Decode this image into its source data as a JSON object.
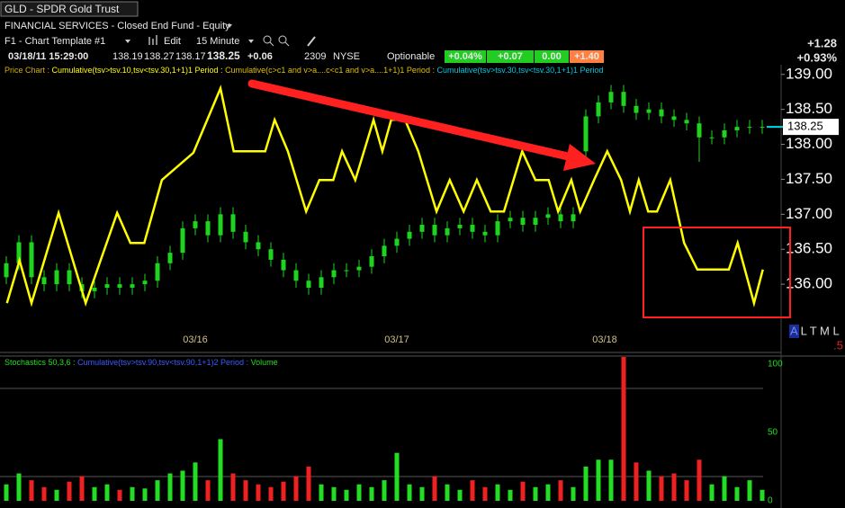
{
  "header": {
    "symbol": "GLD - SPDR Gold Trust",
    "sector": "FINANCIAL SERVICES - Closed End Fund - Equity",
    "template": "F1 - Chart Template #1",
    "edit": "Edit",
    "interval": "15 Minute",
    "datetime": "03/18/11 15:29:00",
    "open": "138.19",
    "high": "138.27",
    "low": "138.17",
    "last": "138.25",
    "change": "+0.06",
    "volume": "2309",
    "exchange": "NYSE",
    "optionable": "Optionable",
    "badges": [
      "+0.04%",
      "+0.07",
      "0.00",
      "+1.40"
    ],
    "net_change": "+1.28",
    "pct_change": "+0.93%",
    "side_tabs": "A L T M L",
    "side_value": ".5"
  },
  "chart_data": [
    {
      "type": "candlestick",
      "title": "Price Chart :",
      "title_color": "#d4b000",
      "color": "#1fd41f",
      "x": [
        1,
        3,
        5,
        7,
        9,
        11,
        13,
        15,
        17,
        19,
        21,
        23,
        25,
        27,
        29,
        31,
        33,
        35,
        37,
        39,
        41,
        43,
        45,
        47,
        49,
        51,
        53,
        55,
        57,
        59,
        61,
        63,
        65,
        67,
        69,
        71,
        73,
        75,
        77,
        79,
        81,
        83,
        85,
        87,
        89,
        91,
        93,
        95,
        97,
        99,
        101,
        103,
        105,
        107,
        109,
        111,
        113,
        115,
        117,
        119,
        121
      ],
      "open": [
        136.1,
        136.3,
        136.6,
        136.1,
        136.0,
        136.2,
        136.0,
        135.9,
        135.95,
        136.0,
        135.95,
        136.0,
        136.05,
        136.3,
        136.45,
        136.8,
        136.9,
        136.7,
        137.0,
        136.75,
        136.6,
        136.5,
        136.35,
        136.2,
        136.05,
        135.95,
        136.1,
        136.2,
        136.2,
        136.25,
        136.4,
        136.55,
        136.65,
        136.75,
        136.85,
        136.7,
        136.8,
        136.85,
        136.75,
        136.7,
        136.9,
        136.95,
        136.85,
        136.95,
        137.0,
        136.9,
        137.9,
        138.4,
        138.6,
        138.75,
        138.55,
        138.45,
        138.5,
        138.4,
        138.35,
        138.3,
        138.1,
        138.1,
        138.2,
        138.25,
        138.25
      ],
      "high": [
        136.4,
        136.7,
        136.7,
        136.2,
        136.3,
        136.3,
        136.1,
        136.05,
        136.1,
        136.1,
        136.1,
        136.15,
        136.4,
        136.55,
        136.9,
        137.0,
        137.0,
        137.1,
        137.1,
        136.85,
        136.7,
        136.6,
        136.45,
        136.3,
        136.15,
        136.2,
        136.3,
        136.3,
        136.35,
        136.5,
        136.65,
        136.75,
        136.85,
        136.95,
        136.95,
        136.9,
        136.95,
        136.95,
        136.85,
        137.0,
        137.05,
        137.05,
        137.05,
        137.1,
        137.1,
        137.1,
        138.5,
        138.7,
        138.85,
        138.85,
        138.65,
        138.6,
        138.6,
        138.5,
        138.45,
        138.4,
        138.2,
        138.3,
        138.35,
        138.35,
        138.35
      ],
      "low": [
        136.0,
        136.2,
        136.0,
        135.9,
        135.9,
        135.9,
        135.8,
        135.8,
        135.85,
        135.85,
        135.85,
        135.9,
        135.95,
        136.2,
        136.35,
        136.7,
        136.6,
        136.6,
        136.65,
        136.5,
        136.4,
        136.25,
        136.1,
        135.95,
        135.85,
        135.85,
        136.0,
        136.1,
        136.1,
        136.15,
        136.3,
        136.45,
        136.55,
        136.65,
        136.6,
        136.6,
        136.7,
        136.65,
        136.6,
        136.6,
        136.8,
        136.75,
        136.75,
        136.85,
        136.8,
        136.8,
        137.8,
        138.3,
        138.5,
        138.45,
        138.35,
        138.35,
        138.3,
        138.25,
        138.2,
        137.75,
        138.0,
        138.0,
        138.1,
        138.15,
        138.15
      ],
      "close": [
        136.3,
        136.6,
        136.1,
        136.0,
        136.2,
        136.0,
        135.9,
        135.95,
        136.0,
        135.95,
        136.0,
        136.05,
        136.3,
        136.45,
        136.8,
        136.9,
        136.7,
        137.0,
        136.75,
        136.6,
        136.5,
        136.35,
        136.2,
        136.05,
        135.95,
        136.1,
        136.2,
        136.2,
        136.25,
        136.4,
        136.55,
        136.65,
        136.75,
        136.85,
        136.7,
        136.8,
        136.85,
        136.75,
        136.7,
        136.9,
        136.95,
        136.85,
        136.95,
        137.0,
        136.9,
        137.0,
        138.4,
        138.6,
        138.75,
        138.55,
        138.45,
        138.5,
        138.4,
        138.35,
        138.3,
        138.1,
        138.1,
        138.2,
        138.25,
        138.25,
        138.25
      ],
      "series": [
        {
          "name": "Cumulative(tsv>tsv.10,tsv<tsv.30,1+1)1 Period :",
          "color": "#ffff00",
          "x": [
            1.1,
            3.1,
            5,
            9.3,
            13.6,
            18.6,
            20.7,
            22.9,
            25.7,
            30.7,
            35,
            37.1,
            42.1,
            43.6,
            45.7,
            48.6,
            50.7,
            52.9,
            54.3,
            56.4,
            59.3,
            60.7,
            62.1,
            64.3,
            66.4,
            69.3,
            71.4,
            73.6,
            75.7,
            77.9,
            80,
            82.9,
            85,
            87.1,
            88.6,
            90.7,
            92.1,
            94.3,
            96.4,
            98.6,
            100,
            101.4,
            102.9,
            104.3,
            106.4,
            108.6,
            110.7,
            115.7,
            117.1,
            119.7,
            121.1
          ],
          "values": [
            135.73,
            136.34,
            135.73,
            137.02,
            135.73,
            137.02,
            136.59,
            136.59,
            137.49,
            137.88,
            138.8,
            137.9,
            137.9,
            138.35,
            137.9,
            137.04,
            137.49,
            137.49,
            137.9,
            137.49,
            138.35,
            137.9,
            138.35,
            138.35,
            137.9,
            137.04,
            137.49,
            137.04,
            137.49,
            137.04,
            137.04,
            137.9,
            137.49,
            137.49,
            137.04,
            137.49,
            137.04,
            137.49,
            137.9,
            137.49,
            137.04,
            137.49,
            137.04,
            137.04,
            137.49,
            136.59,
            136.21,
            136.21,
            136.59,
            135.73,
            136.21
          ]
        }
      ],
      "labels": [
        {
          "text": "Cumulative(c>c1 and v>a....c<c1 and v>a....1+1)1 Period :",
          "color": "#e0c000"
        },
        {
          "text": "Cumulative(tsv>tsv.30,tsv<tsv.30,1+1)1 Period",
          "color": "#00c8e0"
        }
      ],
      "xlim": [
        0,
        124
      ],
      "xticks": [
        {
          "value": 31,
          "label": "03/16"
        },
        {
          "value": 63,
          "label": "03/17"
        },
        {
          "value": 96,
          "label": "03/18"
        }
      ],
      "ylim": [
        135.05,
        139.1
      ],
      "yticks": [
        {
          "value": 136,
          "label": "136.00"
        },
        {
          "value": 136.5,
          "label": "136.50"
        },
        {
          "value": 137,
          "label": "137.00"
        },
        {
          "value": 137.5,
          "label": "137.50"
        },
        {
          "value": 138,
          "label": "138.00"
        },
        {
          "value": 138.5,
          "label": "138.50"
        },
        {
          "value": 139,
          "label": "139.00"
        }
      ],
      "last_price": 138.25
    },
    {
      "type": "bar",
      "title": "Stochastics 50,3,6 :",
      "title_color": "#22dd22",
      "up_color": "#22dd22",
      "down_color": "#ee2020",
      "labels": [
        {
          "text": "Cumulative(tsv>tsv.90,tsv<tsv.90,1+1)2 Period :",
          "color": "#3a5cff"
        },
        {
          "text": "Volume",
          "color": "#22dd22"
        }
      ],
      "x": [
        1,
        3,
        5,
        7,
        9,
        11,
        13,
        15,
        17,
        19,
        21,
        23,
        25,
        27,
        29,
        31,
        33,
        35,
        37,
        39,
        41,
        43,
        45,
        47,
        49,
        51,
        53,
        55,
        57,
        59,
        61,
        63,
        65,
        67,
        69,
        71,
        73,
        75,
        77,
        79,
        81,
        83,
        85,
        87,
        89,
        91,
        93,
        95,
        97,
        99,
        101,
        103,
        105,
        107,
        109,
        111,
        113,
        115,
        117,
        119,
        121
      ],
      "values": [
        12,
        20,
        15,
        10,
        8,
        14,
        18,
        10,
        12,
        8,
        10,
        9,
        15,
        20,
        22,
        28,
        15,
        45,
        20,
        15,
        12,
        10,
        14,
        18,
        25,
        12,
        10,
        8,
        12,
        10,
        15,
        35,
        12,
        10,
        18,
        12,
        8,
        15,
        10,
        12,
        8,
        14,
        10,
        12,
        15,
        10,
        25,
        30,
        30,
        105,
        28,
        22,
        18,
        20,
        15,
        30,
        12,
        18,
        10,
        15,
        8
      ],
      "xlim": [
        0,
        124
      ],
      "ylim": [
        0,
        105
      ],
      "yticks": [
        0,
        50,
        100
      ]
    }
  ]
}
